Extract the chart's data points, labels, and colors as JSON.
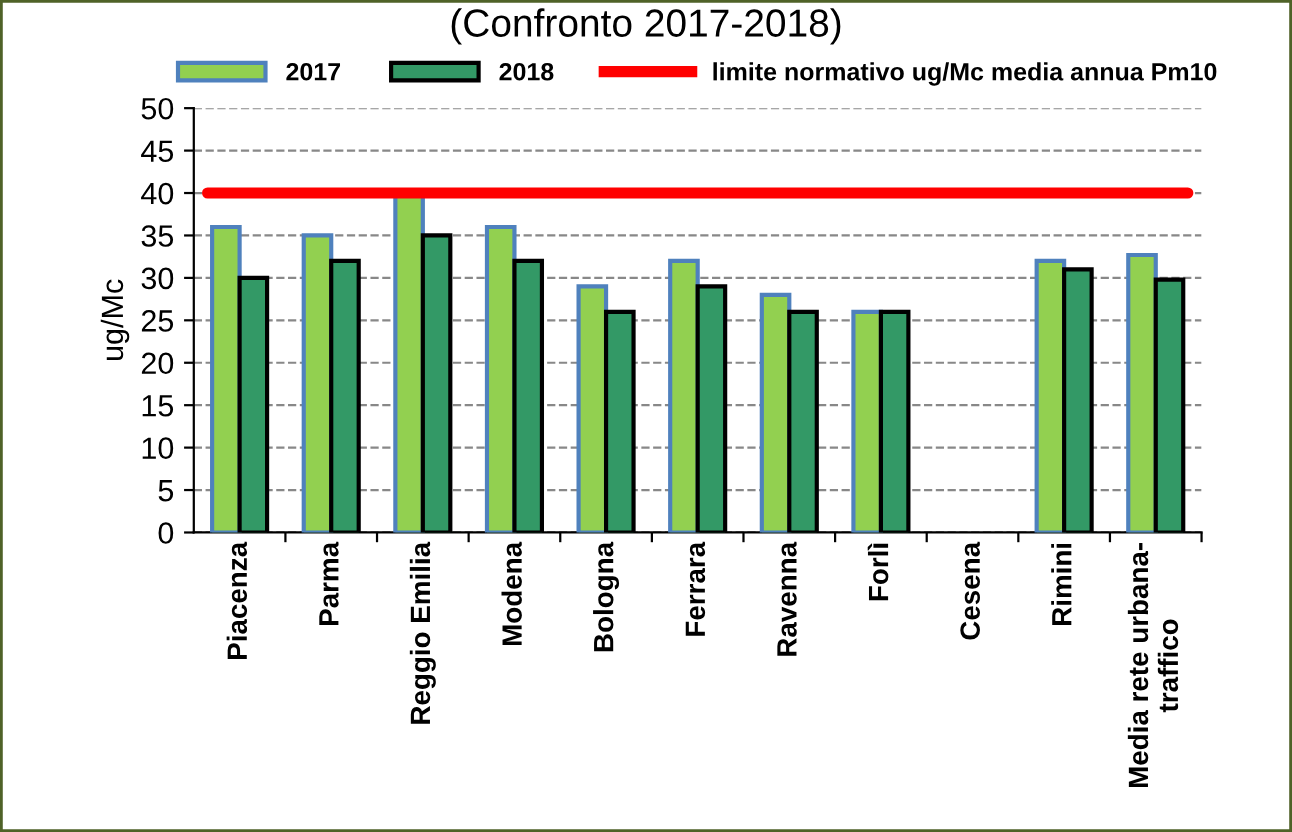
{
  "chart_data": {
    "type": "bar",
    "title": "(Confronto 2017-2018)",
    "ylabel": "ug/Mc",
    "categories": [
      "Piacenza",
      "Parma",
      "Reggio Emilia",
      "Modena",
      "Bologna",
      "Ferrara",
      "Ravenna",
      "Forlì",
      "Cesena",
      "Rimini",
      "Media rete urbana-\ntraffico"
    ],
    "series": [
      {
        "name": "2017",
        "color": "#92d050",
        "values": [
          36,
          35,
          40,
          36,
          29,
          32,
          28,
          26,
          null,
          32,
          32.7
        ]
      },
      {
        "name": "2018",
        "color": "#339966",
        "values": [
          30,
          32,
          35,
          32,
          26,
          29,
          26,
          26,
          null,
          31,
          29.8
        ]
      }
    ],
    "ref_lines": [
      {
        "axis": "y",
        "value": 40,
        "label": "limite normativo ug/Mc media annua Pm10",
        "color": "#ff0000"
      }
    ],
    "ylim": [
      0,
      50
    ],
    "yticks": [
      0,
      5,
      10,
      15,
      20,
      25,
      30,
      35,
      40,
      45,
      50
    ],
    "grid": "y",
    "legend": "top"
  }
}
